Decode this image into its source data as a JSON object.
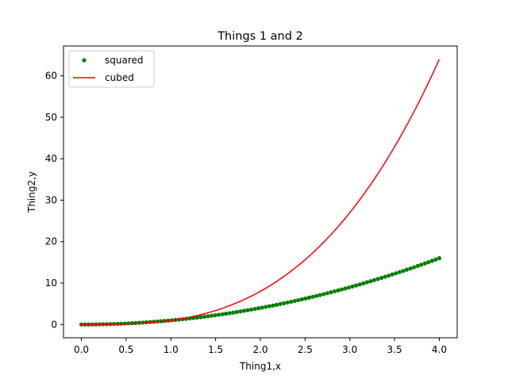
{
  "chart_data": {
    "type": "line",
    "title": "Things 1 and 2",
    "xlabel": "Thing1,x",
    "ylabel": "Thing2,y",
    "xlim": [
      -0.2,
      4.2
    ],
    "ylim": [
      -3.2,
      67.2
    ],
    "x_ticks": [
      0.0,
      0.5,
      1.0,
      1.5,
      2.0,
      2.5,
      3.0,
      3.5,
      4.0
    ],
    "x_tick_labels": [
      "0.0",
      "0.5",
      "1.0",
      "1.5",
      "2.0",
      "2.5",
      "3.0",
      "3.5",
      "4.0"
    ],
    "y_ticks": [
      0,
      10,
      20,
      30,
      40,
      50,
      60
    ],
    "y_tick_labels": [
      "0",
      "10",
      "20",
      "30",
      "40",
      "50",
      "60"
    ],
    "grid": false,
    "legend": "top-left",
    "x_range": [
      0,
      4
    ],
    "num_points": 100,
    "series": [
      {
        "name": "squared",
        "formula": "x^2",
        "style": "markers",
        "color": "#008000"
      },
      {
        "name": "cubed",
        "formula": "x^3",
        "style": "line",
        "color": "#ff0000"
      }
    ]
  }
}
